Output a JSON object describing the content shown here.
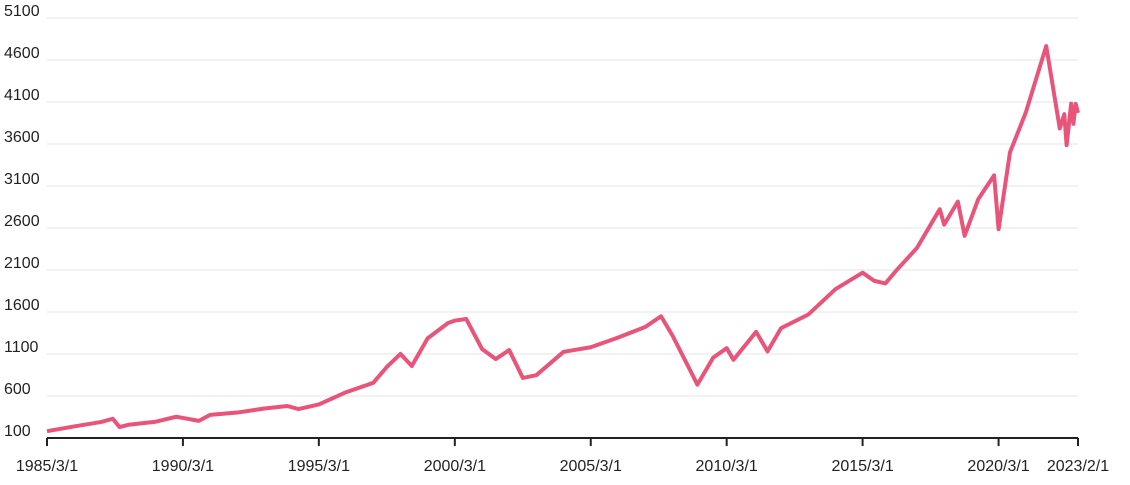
{
  "chart_data": {
    "type": "line",
    "x": [
      "1985/3/1",
      "1986/3/1",
      "1987/3/1",
      "1987/8/1",
      "1987/11/1",
      "1988/3/1",
      "1989/3/1",
      "1989/12/1",
      "1990/3/1",
      "1990/10/1",
      "1991/3/1",
      "1992/3/1",
      "1993/3/1",
      "1994/1/1",
      "1994/6/1",
      "1995/3/1",
      "1996/3/1",
      "1997/3/1",
      "1997/9/1",
      "1998/3/1",
      "1998/8/1",
      "1999/3/1",
      "1999/12/1",
      "2000/3/1",
      "2000/8/1",
      "2001/3/1",
      "2001/9/1",
      "2002/3/1",
      "2002/9/1",
      "2003/3/1",
      "2004/3/1",
      "2005/3/1",
      "2006/3/1",
      "2007/3/1",
      "2007/10/1",
      "2008/3/1",
      "2008/11/1",
      "2009/2/1",
      "2009/9/1",
      "2010/3/1",
      "2010/6/1",
      "2011/4/1",
      "2011/9/1",
      "2012/3/1",
      "2013/3/1",
      "2014/3/1",
      "2015/3/1",
      "2015/8/1",
      "2016/1/1",
      "2016/6/1",
      "2017/3/1",
      "2018/1/1",
      "2018/3/1",
      "2018/9/1",
      "2018/12/1",
      "2019/6/1",
      "2020/1/1",
      "2020/3/1",
      "2020/8/1",
      "2021/3/1",
      "2021/12/1",
      "2022/6/1",
      "2022/8/1",
      "2022/9/1",
      "2022/11/1",
      "2022/12/1",
      "2023/1/1",
      "2023/2/1"
    ],
    "series": [
      {
        "color": "#e9547a",
        "values": [
          181,
          238,
          291,
          329,
          230,
          258,
          294,
          353,
          339,
          304,
          375,
          403,
          451,
          481,
          444,
          500,
          645,
          757,
          947,
          1101,
          957,
          1286,
          1469,
          1498,
          1517,
          1160,
          1040,
          1147,
          815,
          848,
          1126,
          1180,
          1295,
          1421,
          1549,
          1323,
          896,
          735,
          1057,
          1169,
          1031,
          1364,
          1131,
          1408,
          1569,
          1872,
          2068,
          1972,
          1940,
          2099,
          2363,
          2824,
          2641,
          2914,
          2507,
          2942,
          3226,
          2585,
          3500,
          3973,
          4766,
          3785,
          3955,
          3586,
          4080,
          3840,
          4077,
          3970
        ]
      }
    ],
    "xlim": [
      "1985/3/1",
      "2023/2/1"
    ],
    "xticks": [
      "1985/3/1",
      "1990/3/1",
      "1995/3/1",
      "2000/3/1",
      "2005/3/1",
      "2010/3/1",
      "2015/3/1",
      "2020/3/1",
      "2023/2/1"
    ],
    "ylim": [
      100,
      5100
    ],
    "yticks": [
      100,
      600,
      1100,
      1600,
      2100,
      2600,
      3100,
      3600,
      4100,
      4600,
      5100
    ],
    "grid": true
  }
}
